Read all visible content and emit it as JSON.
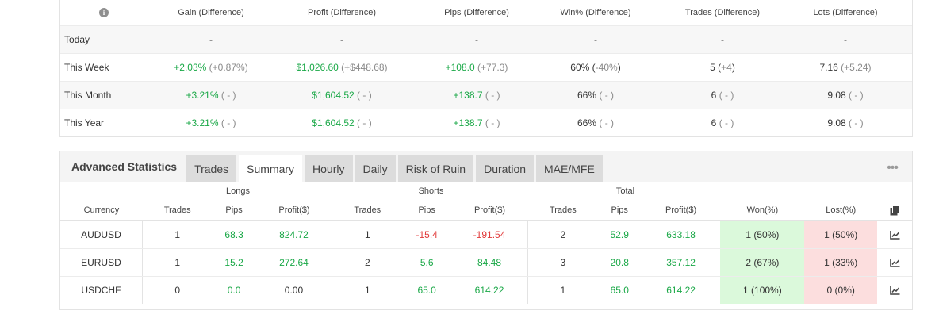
{
  "period_table": {
    "headers": [
      "Gain (Difference)",
      "Profit (Difference)",
      "Pips (Difference)",
      "Win% (Difference)",
      "Trades (Difference)",
      "Lots (Difference)"
    ],
    "rows": [
      {
        "label": "Today",
        "gain": "-",
        "gain_diff": "",
        "profit": "-",
        "profit_diff": "",
        "pips": "-",
        "pips_diff": "",
        "win": "-",
        "win_diff": "",
        "trades": "-",
        "trades_diff": "",
        "lots": "-",
        "lots_diff": ""
      },
      {
        "label": "This Week",
        "gain": "+2.03%",
        "gain_diff": "(+0.87%)",
        "profit": "$1,026.60",
        "profit_diff": "(+$448.68)",
        "pips": "+108.0",
        "pips_diff": "(+77.3)",
        "win": "60%",
        "win_diff_open": "(",
        "win_diff": "-40%",
        "win_diff_close": ")",
        "trades": "5",
        "trades_diff_open": "(",
        "trades_diff": "+4",
        "trades_diff_close": ")",
        "lots": "7.16",
        "lots_diff": "(+5.24)"
      },
      {
        "label": "This Month",
        "gain": "+3.21%",
        "gain_diff": "( - )",
        "profit": "$1,604.52",
        "profit_diff": "( - )",
        "pips": "+138.7",
        "pips_diff": "( - )",
        "win": "66%",
        "win_diff": "( - )",
        "trades": "6",
        "trades_diff": "( - )",
        "lots": "9.08",
        "lots_diff": "( - )"
      },
      {
        "label": "This Year",
        "gain": "+3.21%",
        "gain_diff": "( - )",
        "profit": "$1,604.52",
        "profit_diff": "( - )",
        "pips": "+138.7",
        "pips_diff": "( - )",
        "win": "66%",
        "win_diff": "( - )",
        "trades": "6",
        "trades_diff": "( - )",
        "lots": "9.08",
        "lots_diff": "( - )"
      }
    ]
  },
  "advanced": {
    "title": "Advanced Statistics",
    "tabs": [
      "Trades",
      "Summary",
      "Hourly",
      "Daily",
      "Risk of Ruin",
      "Duration",
      "MAE/MFE"
    ],
    "active_tab": "Summary",
    "groups": {
      "longs": "Longs",
      "shorts": "Shorts",
      "total": "Total"
    },
    "columns": [
      "Currency",
      "Trades",
      "Pips",
      "Profit($)",
      "Trades",
      "Pips",
      "Profit($)",
      "Trades",
      "Pips",
      "Profit($)",
      "Won(%)",
      "Lost(%)"
    ],
    "rows": [
      {
        "currency": "AUDUSD",
        "l_trades": "1",
        "l_pips": "68.3",
        "l_profit": "824.72",
        "s_trades": "1",
        "s_pips": "-15.4",
        "s_profit": "-191.54",
        "t_trades": "2",
        "t_pips": "52.9",
        "t_profit": "633.18",
        "won": "1 (50%)",
        "lost": "1 (50%)"
      },
      {
        "currency": "EURUSD",
        "l_trades": "1",
        "l_pips": "15.2",
        "l_profit": "272.64",
        "s_trades": "2",
        "s_pips": "5.6",
        "s_profit": "84.48",
        "t_trades": "3",
        "t_pips": "20.8",
        "t_profit": "357.12",
        "won": "2 (67%)",
        "lost": "1 (33%)"
      },
      {
        "currency": "USDCHF",
        "l_trades": "0",
        "l_pips": "0.0",
        "l_profit": "0.00",
        "s_trades": "1",
        "s_pips": "65.0",
        "s_profit": "614.22",
        "t_trades": "1",
        "t_pips": "65.0",
        "t_profit": "614.22",
        "won": "1 (100%)",
        "lost": "0 (0%)"
      }
    ]
  },
  "colors": {
    "positive": "#1aa847",
    "negative": "#e13b3b",
    "neutral": "#8a8a8a",
    "won_bg": "#dbf9db",
    "lost_bg": "#fcdede"
  }
}
